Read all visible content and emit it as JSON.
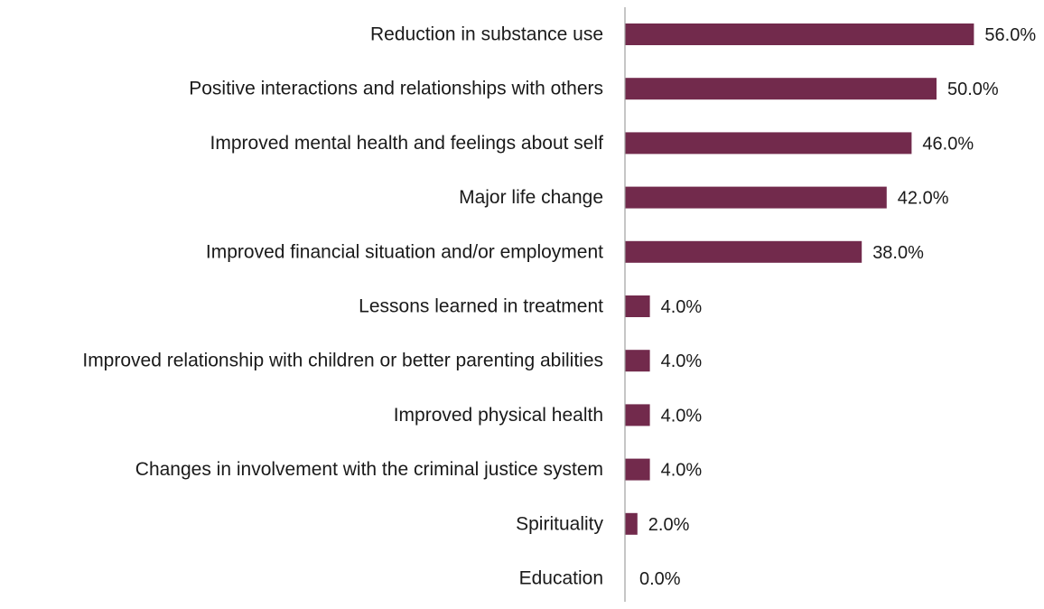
{
  "chart_data": {
    "type": "bar",
    "orientation": "horizontal",
    "title": "",
    "xlabel": "",
    "ylabel": "",
    "xlim": [
      0,
      60
    ],
    "grid": false,
    "legend": "none",
    "bar_color": "#722a4c",
    "axis_color": "#a0a0a0",
    "categories": [
      "Reduction in substance use",
      "Positive interactions and relationships with others",
      "Improved mental health and feelings about self",
      "Major life change",
      "Improved financial situation and/or employment",
      "Lessons learned in treatment",
      "Improved relationship with children or better parenting abilities",
      "Improved physical health",
      "Changes in involvement with the criminal justice system",
      "Spirituality",
      "Education"
    ],
    "values": [
      56.0,
      50.0,
      46.0,
      42.0,
      38.0,
      4.0,
      4.0,
      4.0,
      4.0,
      2.0,
      0.0
    ],
    "value_labels": [
      "56.0%",
      "50.0%",
      "46.0%",
      "42.0%",
      "38.0%",
      "4.0%",
      "4.0%",
      "4.0%",
      "4.0%",
      "2.0%",
      "0.0%"
    ]
  }
}
